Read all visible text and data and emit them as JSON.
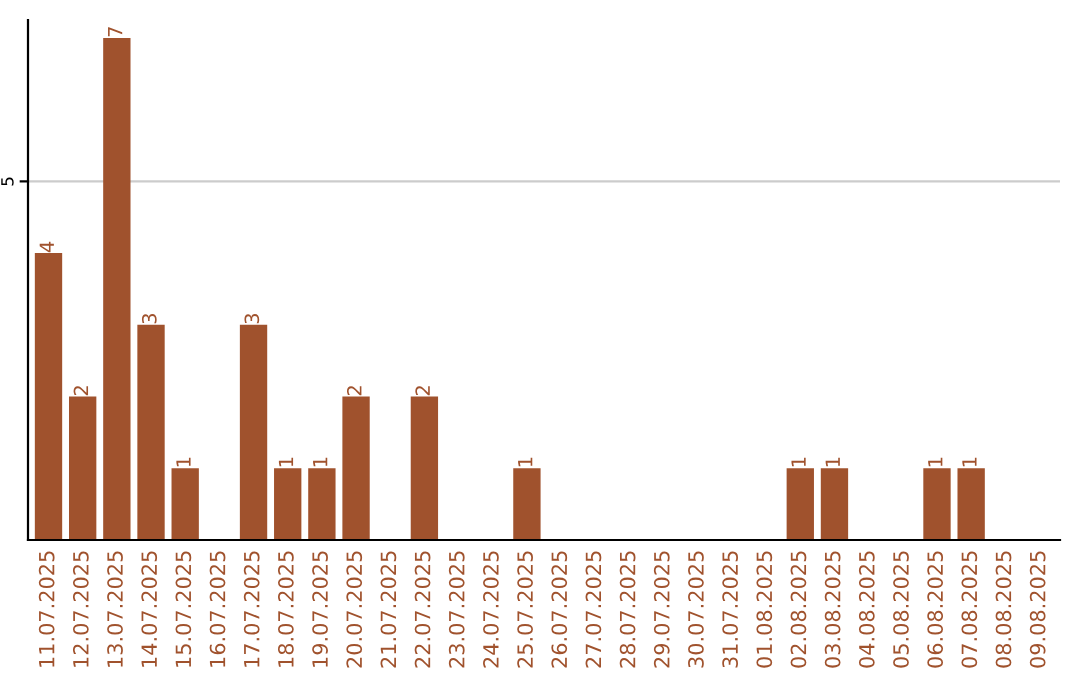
{
  "chart_data": {
    "type": "bar",
    "categories": [
      "11.07.2025",
      "12.07.2025",
      "13.07.2025",
      "14.07.2025",
      "15.07.2025",
      "16.07.2025",
      "17.07.2025",
      "18.07.2025",
      "19.07.2025",
      "20.07.2025",
      "21.07.2025",
      "22.07.2025",
      "23.07.2025",
      "24.07.2025",
      "25.07.2025",
      "26.07.2025",
      "27.07.2025",
      "28.07.2025",
      "29.07.2025",
      "30.07.2025",
      "31.07.2025",
      "01.08.2025",
      "02.08.2025",
      "03.08.2025",
      "04.08.2025",
      "05.08.2025",
      "06.08.2025",
      "07.08.2025",
      "08.08.2025",
      "09.08.2025"
    ],
    "values": [
      4,
      2,
      7,
      3,
      1,
      0,
      3,
      1,
      1,
      2,
      0,
      2,
      0,
      0,
      1,
      0,
      0,
      0,
      0,
      0,
      0,
      0,
      1,
      1,
      0,
      0,
      1,
      1,
      0,
      0
    ],
    "value_labels": [
      "4",
      "2",
      "7",
      "3",
      "1",
      null,
      "3",
      "1",
      "1",
      "2",
      null,
      "2",
      null,
      null,
      "1",
      null,
      null,
      null,
      null,
      null,
      null,
      null,
      "1",
      "1",
      null,
      null,
      "1",
      "1",
      null,
      null
    ],
    "color": "#a0522d",
    "ylim": [
      0,
      7.25
    ],
    "yticks": [
      5
    ],
    "grid": "y"
  }
}
